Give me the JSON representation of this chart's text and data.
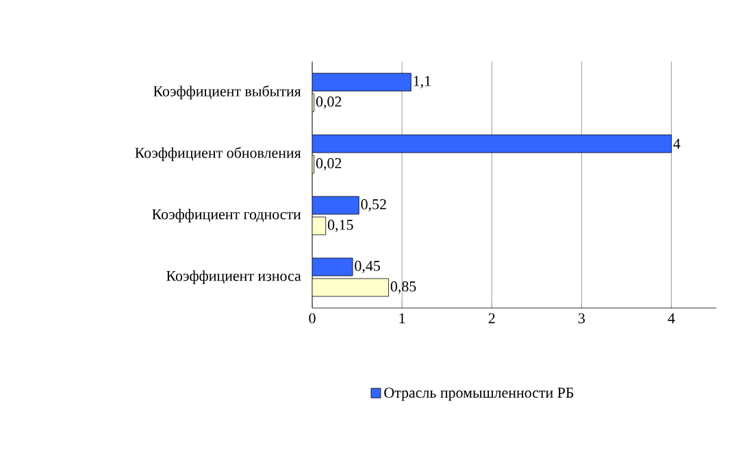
{
  "chart_data": {
    "type": "bar",
    "orientation": "horizontal",
    "categories": [
      "Коэффициент выбытия",
      "Коэффициент обновления",
      "Коэффициент годности",
      "Коэффициент износа"
    ],
    "series": [
      {
        "color": "#ffffcc",
        "values": [
          0.02,
          0.02,
          0.15,
          0.85
        ],
        "value_labels": [
          "0,02",
          "0,02",
          "0,15",
          "0,85"
        ]
      },
      {
        "name": "Отрасль промышленности РБ",
        "color": "#3366ff",
        "values": [
          1.1,
          4,
          0.52,
          0.45
        ],
        "value_labels": [
          "1,1",
          "4",
          "0,52",
          "0,45"
        ]
      }
    ],
    "xlim": [
      0,
      4.5
    ],
    "xticks": [
      0,
      1,
      2,
      3,
      4
    ],
    "grid": "x",
    "legend": "bottom"
  }
}
